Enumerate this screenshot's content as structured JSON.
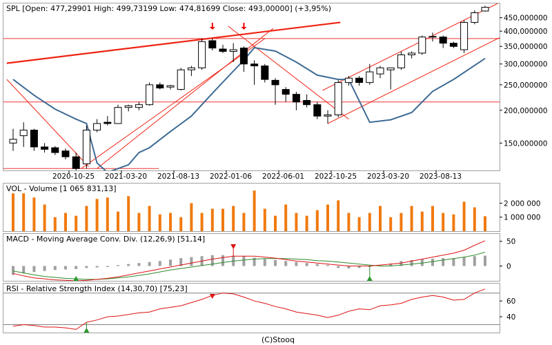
{
  "header": {
    "main": "SPL [Open: 477,29901  High: 499,73199  Low: 474,81699  Close: 493,00000] (+3,95%)",
    "volume": "VOL - Volume [1 065 831,13]",
    "macd": "MACD - Moving Average Conv. Div. (12,26,9) [51,14]",
    "rsi": "RSI - Relative Strength Index (14,30,70) [75,23]"
  },
  "footer": {
    "copyright": "(C)Stooq"
  },
  "chart_data": [
    {
      "type": "candlestick",
      "name": "price",
      "scale": "log",
      "ylim": [
        118,
        510
      ],
      "x_ticks": [
        "2020-10-25",
        "2021-03-20",
        "2021-08-13",
        "2022-01-06",
        "2022-06-01",
        "2022-10-25",
        "2023-03-20",
        "2023-08-13"
      ],
      "y_ticks": [
        "450,000000",
        "400,000000",
        "350,000000",
        "300,000000",
        "250,000000",
        "200,000000",
        "150,000000"
      ],
      "y_tick_values": [
        450,
        400,
        350,
        300,
        250,
        200,
        150
      ],
      "candles": [
        {
          "o": 150,
          "h": 170,
          "l": 140,
          "c": 155
        },
        {
          "o": 160,
          "h": 180,
          "l": 145,
          "c": 168
        },
        {
          "o": 168,
          "h": 170,
          "l": 140,
          "c": 145
        },
        {
          "o": 145,
          "h": 150,
          "l": 138,
          "c": 142
        },
        {
          "o": 144,
          "h": 146,
          "l": 135,
          "c": 138
        },
        {
          "o": 140,
          "h": 143,
          "l": 130,
          "c": 133
        },
        {
          "o": 133,
          "h": 138,
          "l": 118,
          "c": 120
        },
        {
          "o": 125,
          "h": 175,
          "l": 120,
          "c": 168
        },
        {
          "o": 168,
          "h": 185,
          "l": 165,
          "c": 178
        },
        {
          "o": 180,
          "h": 190,
          "l": 175,
          "c": 178
        },
        {
          "o": 178,
          "h": 210,
          "l": 178,
          "c": 205
        },
        {
          "o": 205,
          "h": 210,
          "l": 198,
          "c": 208
        },
        {
          "o": 205,
          "h": 215,
          "l": 200,
          "c": 210
        },
        {
          "o": 210,
          "h": 255,
          "l": 208,
          "c": 250
        },
        {
          "o": 250,
          "h": 255,
          "l": 240,
          "c": 243
        },
        {
          "o": 245,
          "h": 250,
          "l": 240,
          "c": 248
        },
        {
          "o": 240,
          "h": 290,
          "l": 238,
          "c": 285
        },
        {
          "o": 285,
          "h": 295,
          "l": 270,
          "c": 290
        },
        {
          "o": 290,
          "h": 375,
          "l": 285,
          "c": 365
        },
        {
          "o": 368,
          "h": 375,
          "l": 338,
          "c": 345
        },
        {
          "o": 342,
          "h": 355,
          "l": 330,
          "c": 335
        },
        {
          "o": 335,
          "h": 360,
          "l": 305,
          "c": 340
        },
        {
          "o": 345,
          "h": 350,
          "l": 280,
          "c": 300
        },
        {
          "o": 300,
          "h": 310,
          "l": 250,
          "c": 295
        },
        {
          "o": 295,
          "h": 300,
          "l": 255,
          "c": 262
        },
        {
          "o": 260,
          "h": 265,
          "l": 210,
          "c": 250
        },
        {
          "o": 240,
          "h": 245,
          "l": 215,
          "c": 230
        },
        {
          "o": 230,
          "h": 235,
          "l": 200,
          "c": 215
        },
        {
          "o": 218,
          "h": 230,
          "l": 205,
          "c": 210
        },
        {
          "o": 210,
          "h": 215,
          "l": 185,
          "c": 190
        },
        {
          "o": 190,
          "h": 200,
          "l": 178,
          "c": 192
        },
        {
          "o": 192,
          "h": 260,
          "l": 188,
          "c": 255
        },
        {
          "o": 255,
          "h": 270,
          "l": 248,
          "c": 265
        },
        {
          "o": 265,
          "h": 270,
          "l": 248,
          "c": 255
        },
        {
          "o": 255,
          "h": 300,
          "l": 250,
          "c": 280
        },
        {
          "o": 275,
          "h": 295,
          "l": 265,
          "c": 290
        },
        {
          "o": 285,
          "h": 290,
          "l": 240,
          "c": 290
        },
        {
          "o": 290,
          "h": 335,
          "l": 285,
          "c": 325
        },
        {
          "o": 325,
          "h": 335,
          "l": 315,
          "c": 330
        },
        {
          "o": 330,
          "h": 385,
          "l": 325,
          "c": 380
        },
        {
          "o": 382,
          "h": 395,
          "l": 365,
          "c": 380
        },
        {
          "o": 380,
          "h": 385,
          "l": 345,
          "c": 360
        },
        {
          "o": 360,
          "h": 365,
          "l": 345,
          "c": 350
        },
        {
          "o": 340,
          "h": 440,
          "l": 330,
          "c": 432
        },
        {
          "o": 432,
          "h": 480,
          "l": 425,
          "c": 470
        },
        {
          "o": 477.29901,
          "h": 499.73199,
          "l": 474.81699,
          "c": 493.0
        }
      ],
      "ma_line": [
        {
          "i": 0,
          "v": 262
        },
        {
          "i": 2,
          "v": 228
        },
        {
          "i": 4,
          "v": 202
        },
        {
          "i": 6,
          "v": 185
        },
        {
          "i": 7,
          "v": 178
        },
        {
          "i": 8,
          "v": 126
        },
        {
          "i": 9,
          "v": 116
        },
        {
          "i": 11,
          "v": 124
        },
        {
          "i": 12,
          "v": 138
        },
        {
          "i": 13,
          "v": 144
        },
        {
          "i": 15,
          "v": 166
        },
        {
          "i": 17,
          "v": 190
        },
        {
          "i": 19,
          "v": 232
        },
        {
          "i": 21,
          "v": 282
        },
        {
          "i": 22,
          "v": 310
        },
        {
          "i": 23,
          "v": 346
        },
        {
          "i": 25,
          "v": 336
        },
        {
          "i": 27,
          "v": 305
        },
        {
          "i": 29,
          "v": 272
        },
        {
          "i": 31,
          "v": 262
        },
        {
          "i": 32,
          "v": 262
        },
        {
          "i": 34,
          "v": 180
        },
        {
          "i": 36,
          "v": 184
        },
        {
          "i": 38,
          "v": 196
        },
        {
          "i": 40,
          "v": 236
        },
        {
          "i": 42,
          "v": 262
        },
        {
          "i": 45,
          "v": 315
        }
      ],
      "hlines": [
        375,
        215
      ],
      "trendlines": [
        {
          "i1": -0.6,
          "v1": 302,
          "i2": 31.2,
          "v2": 432
        },
        {
          "i1": -0.6,
          "v1": 262,
          "i2": 7.2,
          "v2": 122
        },
        {
          "i1": 6.5,
          "v1": 120,
          "i2": 24.0,
          "v2": 375
        },
        {
          "i1": 8.0,
          "v1": 120,
          "i2": 24.8,
          "v2": 410
        },
        {
          "i1": 20.5,
          "v1": 418,
          "i2": 32.0,
          "v2": 185
        },
        {
          "i1": 30.0,
          "v1": 178,
          "i2": 46.5,
          "v2": 380
        },
        {
          "i1": 29.5,
          "v1": 238,
          "i2": 46.2,
          "v2": 510
        }
      ],
      "arrows": [
        {
          "i": 19
        },
        {
          "i": 22
        }
      ]
    },
    {
      "type": "bar",
      "name": "VOL - Volume",
      "ylim": [
        0,
        3400000
      ],
      "y_ticks": [
        "2 000 000",
        "1 000 000"
      ],
      "y_tick_values": [
        2000000,
        1000000
      ],
      "values": [
        2700000,
        2700000,
        2400000,
        1900000,
        1000000,
        1300000,
        1100000,
        1800000,
        2300000,
        2400000,
        1400000,
        2500000,
        1300000,
        1800000,
        1200000,
        1300000,
        1000000,
        2000000,
        1300000,
        1600000,
        1600000,
        1800000,
        1300000,
        2900000,
        1600000,
        1100000,
        1900000,
        1300000,
        1100000,
        1500000,
        1900000,
        2200000,
        1300000,
        1000000,
        1300000,
        1800000,
        1000000,
        1300000,
        1800000,
        1400000,
        1800000,
        1300000,
        1200000,
        2100000,
        1700000,
        1065831
      ]
    },
    {
      "type": "line",
      "name": "MACD - Moving Average Conv. Div.",
      "ylim": [
        -30,
        65
      ],
      "y_ticks": [
        "50",
        "0"
      ],
      "y_tick_values": [
        50,
        0
      ],
      "histogram": [
        -18,
        -15,
        -12,
        -10,
        -8,
        -7,
        -6,
        -4,
        -3,
        -2,
        2,
        4,
        6,
        8,
        10,
        13,
        16,
        18,
        20,
        22,
        22,
        21,
        20,
        17,
        14,
        12,
        10,
        8,
        6,
        4,
        2,
        -4,
        -5,
        -4,
        -2,
        1,
        5,
        10,
        12,
        14,
        15,
        16,
        16,
        18,
        20,
        21
      ],
      "macd": [
        -15,
        -20,
        -24,
        -26,
        -28,
        -29,
        -30,
        -29,
        -27,
        -25,
        -22,
        -18,
        -14,
        -10,
        -6,
        -2,
        2,
        6,
        10,
        14,
        17,
        20,
        20,
        20,
        18,
        16,
        13,
        10,
        8,
        6,
        4,
        2,
        0,
        0,
        0,
        2,
        4,
        6,
        10,
        14,
        18,
        22,
        26,
        32,
        42,
        51.14
      ],
      "signal": [
        -10,
        -14,
        -18,
        -21,
        -23,
        -25,
        -26,
        -27,
        -27,
        -26,
        -24,
        -22,
        -19,
        -16,
        -12,
        -8,
        -5,
        -2,
        1,
        4,
        7,
        10,
        12,
        14,
        15,
        15,
        15,
        14,
        13,
        11,
        10,
        8,
        6,
        4,
        2,
        0,
        0,
        2,
        4,
        6,
        9,
        12,
        15,
        18,
        22,
        28
      ],
      "markers": [
        {
          "i": 21,
          "kind": "down"
        },
        {
          "i": 34,
          "kind": "up"
        },
        {
          "i": 6,
          "kind": "up"
        }
      ]
    },
    {
      "type": "line",
      "name": "RSI - Relative Strength Index",
      "ylim": [
        20,
        82
      ],
      "y_ticks": [
        "60",
        "40"
      ],
      "y_tick_values": [
        60,
        40
      ],
      "levels": [
        70,
        30
      ],
      "values": [
        28,
        30,
        29,
        27,
        27,
        26,
        24,
        33,
        36,
        40,
        41,
        43,
        45,
        46,
        50,
        52,
        54,
        58,
        62,
        67,
        70,
        69,
        65,
        60,
        57,
        53,
        50,
        46,
        44,
        42,
        39,
        42,
        47,
        50,
        49,
        54,
        55,
        57,
        62,
        65,
        67,
        65,
        61,
        62,
        70,
        75.23
      ],
      "markers": [
        {
          "i": 19,
          "kind": "down"
        },
        {
          "i": 7,
          "kind": "up"
        }
      ]
    }
  ]
}
